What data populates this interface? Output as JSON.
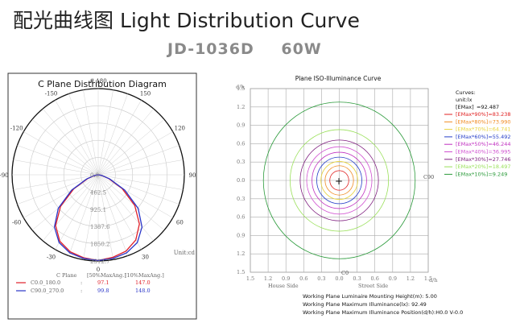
{
  "header": {
    "title": "配光曲线图 Light Distribution Curve",
    "model": "JD-1036D",
    "power": "60W"
  },
  "chart_data": [
    {
      "type": "polar",
      "title": "C Plane Distribution Diagram",
      "angle_labels": [
        "180",
        "150",
        "150",
        "120",
        "120",
        "90",
        "90",
        "60",
        "60",
        "30",
        "30",
        "0"
      ],
      "radial_ticks": [
        "0.0",
        "462.5",
        "925.1",
        "1387.6",
        "1850.2",
        "2312.7"
      ],
      "radial_max": 2312.7,
      "unit_label": "Unit:cd",
      "legend_header": [
        "C Plane",
        "[50%MaxAng.]",
        "[10%MaxAng.]"
      ],
      "series": [
        {
          "name": "C0.0_180.0",
          "color": "#e0202a",
          "half_angle_50": "97.1",
          "half_angle_10": "147.0",
          "angles": [
            0,
            10,
            20,
            30,
            40,
            50,
            60,
            70,
            80,
            90
          ],
          "values_right": [
            2300,
            2250,
            2180,
            2020,
            1720,
            1280,
            740,
            300,
            80,
            0
          ],
          "values_left": [
            2300,
            2260,
            2200,
            2060,
            1780,
            1320,
            760,
            300,
            80,
            0
          ]
        },
        {
          "name": "C90.0_270.0",
          "color": "#2a36c8",
          "half_angle_50": "99.8",
          "half_angle_10": "148.0",
          "angles": [
            0,
            10,
            20,
            30,
            40,
            50,
            60,
            70,
            80,
            90
          ],
          "values_right": [
            2300,
            2280,
            2230,
            2100,
            1830,
            1400,
            820,
            330,
            90,
            0
          ],
          "values_left": [
            2300,
            2280,
            2230,
            2100,
            1830,
            1400,
            820,
            330,
            90,
            0
          ]
        }
      ]
    },
    {
      "type": "contour",
      "title": "Plane ISO-Illuminance Curve",
      "x_ticks": [
        "1.5",
        "1.2",
        "0.9",
        "0.6",
        "0.3",
        "0.0",
        "0.3",
        "0.6",
        "0.9",
        "1.2",
        "1.5"
      ],
      "y_ticks": [
        "1.5",
        "1.2",
        "0.9",
        "0.6",
        "0.3",
        "0.0",
        "0.3",
        "0.6",
        "0.9",
        "1.2",
        "1.5"
      ],
      "xlabel_left": "House Side",
      "xlabel_right": "Street Side",
      "axis_unit": "d/h",
      "c90_label": "C90",
      "c0_label": "C0",
      "center_marker": "+",
      "curves_header": [
        "Curves:",
        "unit:lx"
      ],
      "emax_label": "[EMax]",
      "emax_value": "=92.487",
      "levels": [
        {
          "label": "[EMax*90%]=83.238",
          "color": "#e02020",
          "radius": 0.16
        },
        {
          "label": "[EMax*80%]=73.990",
          "color": "#f08a20",
          "radius": 0.24
        },
        {
          "label": "[EMax*70%]=64.741",
          "color": "#e8d23a",
          "radius": 0.31
        },
        {
          "label": "[EMax*60%]=55.492",
          "color": "#2840c8",
          "radius": 0.38
        },
        {
          "label": "[EMax*50%]=46.244",
          "color": "#c030c0",
          "radius": 0.46
        },
        {
          "label": "[EMax*40%]=36.995",
          "color": "#d050d0",
          "radius": 0.55
        },
        {
          "label": "[EMax*30%]=27.746",
          "color": "#802080",
          "radius": 0.66
        },
        {
          "label": "[EMax*20%]=18.497",
          "color": "#9ae05a",
          "radius": 0.83
        },
        {
          "label": "[EMax*10%]=9.249",
          "color": "#2a9a3a",
          "radius": 1.28
        }
      ],
      "footer": [
        "Working Plane Luminaire Mounting Height(m): 5.00",
        "Working Plane Maximum Illuminance(lx): 92.49",
        "Working Plane Maximum Illuminance Position(d/h):H0.0 V-0.0"
      ]
    }
  ]
}
